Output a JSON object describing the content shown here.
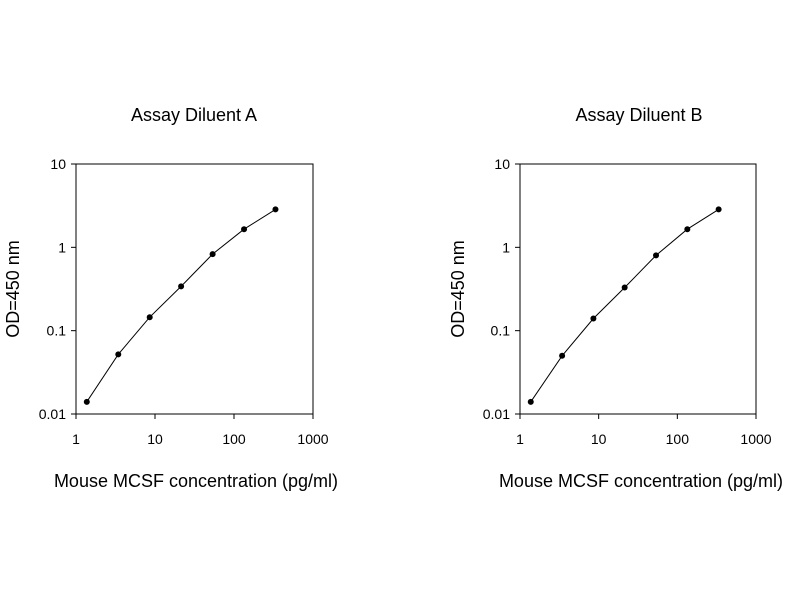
{
  "chart_data": [
    {
      "type": "line",
      "title": "Assay Diluent A",
      "xlabel": "Mouse MCSF concentration (pg/ml)",
      "ylabel": "OD=450 nm",
      "x_scale": "log",
      "y_scale": "log",
      "xlim": [
        1,
        1000
      ],
      "ylim": [
        0.01,
        10
      ],
      "x_ticks": [
        "1",
        "10",
        "100",
        "1000"
      ],
      "y_ticks": [
        "0.01",
        "0.1",
        "1",
        "10"
      ],
      "grid": false,
      "legend": "none",
      "series": [
        {
          "x": [
            1.37,
            3.43,
            8.57,
            21.4,
            53.6,
            134,
            335
          ],
          "y": [
            0.014,
            0.052,
            0.145,
            0.34,
            0.83,
            1.65,
            2.85
          ]
        }
      ]
    },
    {
      "type": "line",
      "title": "Assay Diluent B",
      "xlabel": "Mouse MCSF concentration (pg/ml)",
      "ylabel": "OD=450 nm",
      "x_scale": "log",
      "y_scale": "log",
      "xlim": [
        1,
        1000
      ],
      "ylim": [
        0.01,
        10
      ],
      "x_ticks": [
        "1",
        "10",
        "100",
        "1000"
      ],
      "y_ticks": [
        "0.01",
        "0.1",
        "1",
        "10"
      ],
      "grid": false,
      "legend": "none",
      "series": [
        {
          "x": [
            1.37,
            3.43,
            8.57,
            21.4,
            53.6,
            134,
            335
          ],
          "y": [
            0.014,
            0.05,
            0.14,
            0.33,
            0.8,
            1.65,
            2.85
          ]
        }
      ]
    }
  ]
}
